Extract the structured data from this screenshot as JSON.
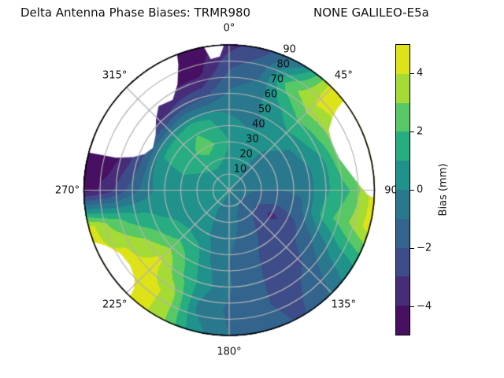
{
  "title": {
    "left": "Delta Antenna Phase Biases: TRMR980",
    "right": "NONE GALILEO-E5a"
  },
  "colorbar": {
    "label": "Bias (mm)",
    "min": -5,
    "max": 5,
    "ticks": [
      {
        "value": 4,
        "label": "4"
      },
      {
        "value": 2,
        "label": "2"
      },
      {
        "value": 0,
        "label": "0"
      },
      {
        "value": -2,
        "label": "−2"
      },
      {
        "value": -4,
        "label": "−4"
      }
    ]
  },
  "chart_data": {
    "type": "heatmap",
    "projection": "polar",
    "title": "Delta Antenna Phase Biases: TRMR980      NONE GALILEO-E5a",
    "value_label": "Bias (mm)",
    "levels": [
      -5,
      -4,
      -3,
      -2,
      -1,
      0,
      1,
      2,
      3,
      4,
      5
    ],
    "band_colors_low_to_high": [
      "#471063",
      "#472c7a",
      "#3e4c8a",
      "#32648e",
      "#2a788e",
      "#21918c",
      "#27ad81",
      "#58c765",
      "#a5db36",
      "#dde318"
    ],
    "azimuth_labels": [
      {
        "angle": 0,
        "label": "0°"
      },
      {
        "angle": 45,
        "label": "45°"
      },
      {
        "angle": 90,
        "label": "90"
      },
      {
        "angle": 135,
        "label": "135°"
      },
      {
        "angle": 180,
        "label": "180°"
      },
      {
        "angle": 225,
        "label": "225°"
      },
      {
        "angle": 270,
        "label": "270°"
      },
      {
        "angle": 315,
        "label": "315°"
      }
    ],
    "radial_ticks": {
      "angle_deg": 22.5,
      "values": [
        10,
        20,
        30,
        40,
        50,
        60,
        70,
        80,
        90
      ],
      "labels": [
        "10",
        "20",
        "30",
        "40",
        "50",
        "60",
        "70",
        "80",
        "90"
      ]
    },
    "grid": {
      "azimuth_step_deg": 15,
      "radius_step": 15,
      "radius_max": 90,
      "comment": "rows r=0,15,30,45,60,75,90; cols az=0..345 step 15; bias mm",
      "values": [
        [
          0.1,
          0.1,
          0.1,
          0.1,
          0.1,
          0.1,
          0.1,
          0.1,
          0.1,
          0.1,
          0.1,
          0.1,
          0.1,
          0.1,
          0.1,
          0.1,
          0.1,
          0.1,
          0.1,
          0.1,
          0.1,
          0.1,
          0.1,
          0.1
        ],
        [
          0.6,
          0.4,
          0.1,
          -0.2,
          -0.4,
          -0.6,
          -0.9,
          -1.3,
          -1.6,
          -1.7,
          -1.3,
          -0.9,
          -0.6,
          -0.3,
          0.0,
          0.2,
          0.4,
          0.5,
          0.6,
          0.7,
          0.8,
          0.9,
          1.0,
          0.8
        ],
        [
          1.0,
          0.5,
          0.2,
          -0.1,
          -0.3,
          -0.6,
          -1.0,
          -1.8,
          -3.3,
          -2.6,
          -1.8,
          -1.2,
          -0.8,
          -0.4,
          0.3,
          0.5,
          0.6,
          0.6,
          0.7,
          0.9,
          1.3,
          1.9,
          2.5,
          1.9
        ],
        [
          0.1,
          -0.2,
          0.0,
          0.3,
          -0.1,
          -0.5,
          -0.8,
          -1.3,
          -2.3,
          -2.5,
          -2.3,
          -1.5,
          -1.0,
          0.0,
          1.6,
          2.2,
          1.4,
          0.7,
          0.2,
          0.7,
          1.1,
          1.3,
          1.7,
          1.0
        ],
        [
          -0.8,
          -0.4,
          0.8,
          2.0,
          1.5,
          0.6,
          0.8,
          1.4,
          -0.9,
          -2.2,
          -2.6,
          -1.6,
          -0.9,
          0.5,
          2.2,
          4.2,
          3.0,
          1.2,
          -1.5,
          -2.5,
          -2.8,
          -3.2,
          -2.6,
          -2.2
        ],
        [
          -2.0,
          -1.2,
          2.6,
          4.0,
          3.8,
          3.5,
          2.0,
          2.8,
          0.5,
          -1.5,
          -2.4,
          -1.8,
          -1.2,
          -0.2,
          3.8,
          4.5,
          4.2,
          2.5,
          -3.5,
          -4.5,
          -4.5,
          -4.5,
          -4.5,
          -4.4
        ],
        [
          -3.4,
          -2.3,
          -0.5,
          4.5,
          4.5,
          4.3,
          4.5,
          4.5,
          1.2,
          -0.8,
          -2.2,
          -1.4,
          -1.0,
          0.5,
          3.8,
          4.5,
          4.4,
          4.5,
          -4.6,
          -4.8,
          -4.8,
          -4.8,
          -4.8,
          -4.8
        ]
      ]
    },
    "no_data_regions": [
      [
        [
          285,
          90
        ],
        [
          295,
          90
        ],
        [
          305,
          90
        ],
        [
          315,
          90
        ],
        [
          325,
          90
        ],
        [
          333,
          90
        ],
        [
          339,
          90
        ],
        [
          338,
          84
        ],
        [
          334,
          73
        ],
        [
          328,
          66
        ],
        [
          320,
          68
        ],
        [
          314,
          63
        ],
        [
          307,
          57
        ],
        [
          299,
          54
        ],
        [
          293,
          57
        ],
        [
          289,
          63
        ],
        [
          286,
          73
        ]
      ],
      [
        [
          350,
          90
        ],
        [
          358,
          90
        ],
        [
          356,
          83
        ],
        [
          352,
          82
        ]
      ],
      [
        [
          52,
          90
        ],
        [
          60,
          90
        ],
        [
          70,
          90
        ],
        [
          80,
          90
        ],
        [
          88,
          90
        ],
        [
          93,
          90
        ],
        [
          92,
          86
        ],
        [
          87,
          80
        ],
        [
          81,
          75
        ],
        [
          74,
          71
        ],
        [
          66,
          70
        ],
        [
          59,
          72
        ],
        [
          55,
          78
        ],
        [
          53,
          84
        ]
      ],
      [
        [
          223,
          90
        ],
        [
          230,
          90
        ],
        [
          238,
          90
        ],
        [
          245,
          90
        ],
        [
          249,
          90
        ],
        [
          246,
          84
        ],
        [
          240,
          78
        ],
        [
          233,
          77
        ],
        [
          227,
          80
        ],
        [
          224,
          85
        ]
      ]
    ]
  }
}
